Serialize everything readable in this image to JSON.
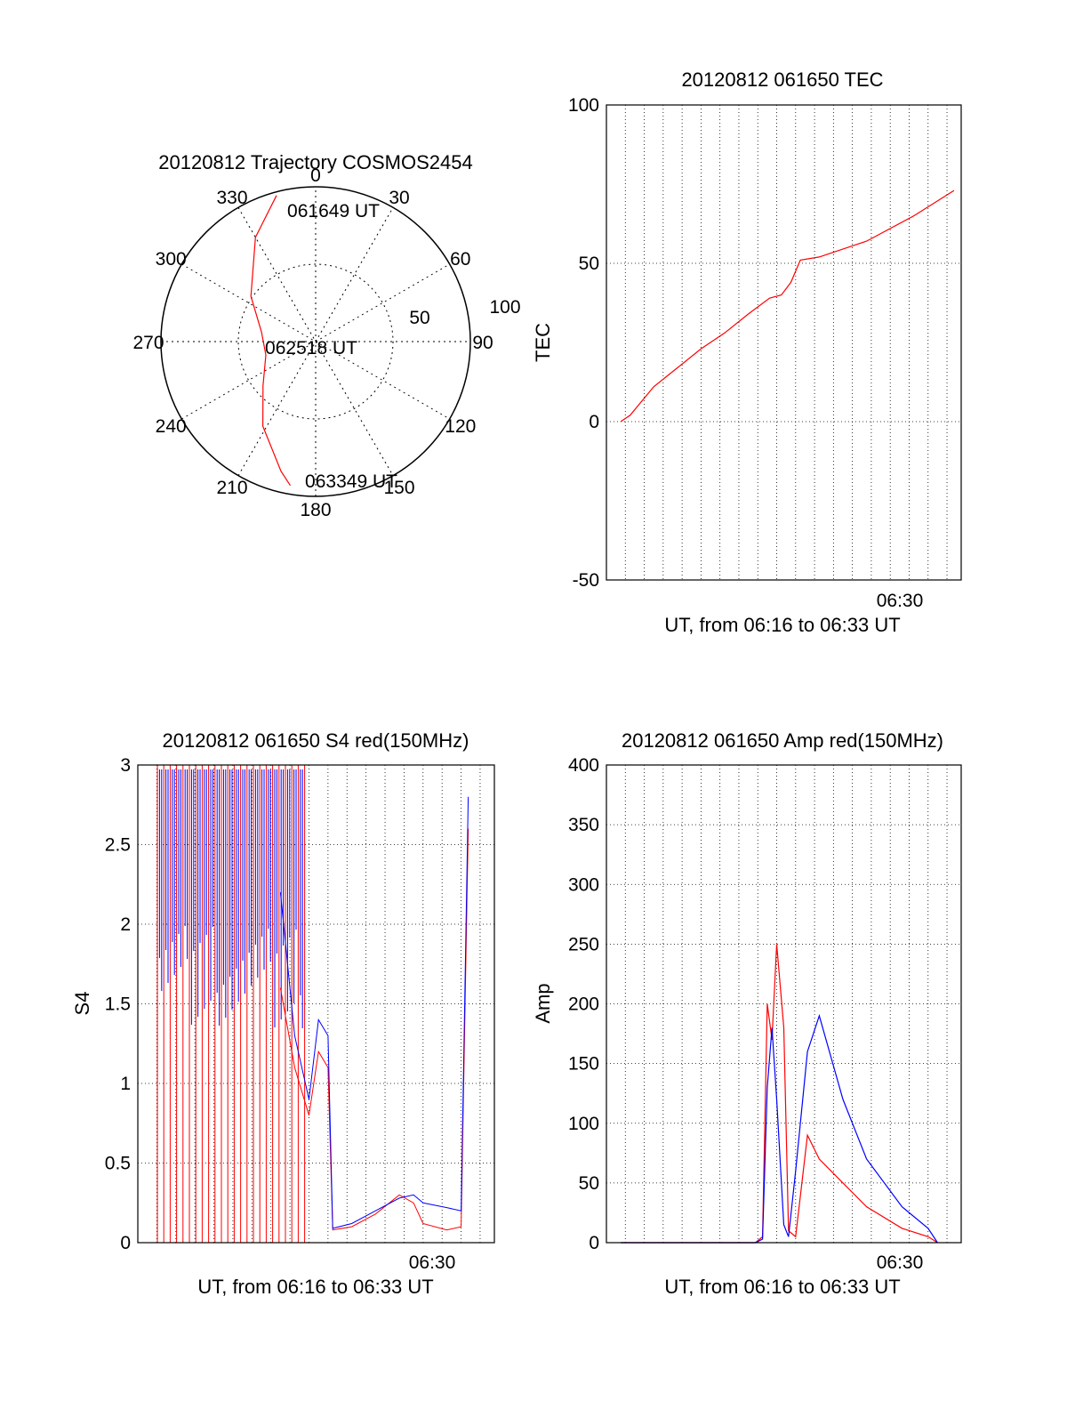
{
  "chart_data": [
    {
      "type": "polar",
      "title": "20120812 Trajectory COSMOS2454",
      "angle_labels": [
        "0",
        "30",
        "60",
        "90",
        "120",
        "150",
        "180",
        "210",
        "240",
        "270",
        "300",
        "330"
      ],
      "radial_labels": [
        "50",
        "100"
      ],
      "annotations": [
        "061649 UT",
        "062518 UT",
        "063349 UT"
      ],
      "trajectory": {
        "color": "#ff0000",
        "points": [
          {
            "az": 345,
            "el": 2
          },
          {
            "az": 330,
            "el": 20
          },
          {
            "az": 305,
            "el": 44
          },
          {
            "az": 280,
            "el": 58
          },
          {
            "az": 255,
            "el": 60
          },
          {
            "az": 230,
            "el": 50
          },
          {
            "az": 212,
            "el": 32
          },
          {
            "az": 195,
            "el": 12
          },
          {
            "az": 190,
            "el": 5
          }
        ]
      }
    },
    {
      "type": "line",
      "title": "20120812 061650 TEC",
      "xlabel": "UT, from 06:16 to 06:33 UT",
      "ylabel": "TEC",
      "ylim": [
        -50,
        100
      ],
      "yticks": [
        "-50",
        "0",
        "50",
        "100"
      ],
      "xtick_label": "06:30",
      "grid": true,
      "series": [
        {
          "color": "#ff0000",
          "x": [
            0.6,
            1.0,
            2.0,
            3.0,
            4.0,
            5.0,
            6.0,
            6.9,
            7.4,
            7.8,
            8.2,
            9.0,
            11.0,
            13.0,
            14.7
          ],
          "y": [
            0,
            2,
            11,
            17,
            23,
            28,
            34,
            39,
            40,
            44,
            51,
            52,
            57,
            65,
            73
          ]
        }
      ]
    },
    {
      "type": "line",
      "title": "20120812 061650 S4 red(150MHz)",
      "xlabel": "UT, from 06:16 to 06:33 UT",
      "ylabel": "S4",
      "ylim": [
        0,
        3
      ],
      "yticks": [
        "0",
        "0.5",
        "1",
        "1.5",
        "2",
        "2.5",
        "3"
      ],
      "xtick_label": "06:30",
      "grid": true,
      "series": [
        {
          "color": "#ff0000",
          "x": [
            6.0,
            6.6,
            7.2,
            7.6,
            8.0,
            8.2,
            9.0,
            10.0,
            11.0,
            11.6,
            12.0,
            13.0,
            13.6,
            13.9
          ],
          "y": [
            1.6,
            1.1,
            0.8,
            1.2,
            1.1,
            0.08,
            0.1,
            0.18,
            0.3,
            0.25,
            0.12,
            0.08,
            0.1,
            2.6
          ]
        },
        {
          "color": "#0000ff",
          "x": [
            6.0,
            6.6,
            7.2,
            7.6,
            8.0,
            8.2,
            9.0,
            10.0,
            11.0,
            11.6,
            12.0,
            13.0,
            13.6,
            13.9
          ],
          "y": [
            2.2,
            1.3,
            0.9,
            1.4,
            1.3,
            0.09,
            0.12,
            0.2,
            0.28,
            0.3,
            0.25,
            0.22,
            0.2,
            2.8
          ]
        }
      ]
    },
    {
      "type": "line",
      "title": "20120812 061650 Amp red(150MHz)",
      "xlabel": "UT, from 06:16 to 06:33 UT",
      "ylabel": "Amp",
      "ylim": [
        0,
        400
      ],
      "yticks": [
        "0",
        "50",
        "100",
        "150",
        "200",
        "250",
        "300",
        "350",
        "400"
      ],
      "xtick_label": "06:30",
      "grid": true,
      "series": [
        {
          "color": "#ff0000",
          "x": [
            0.6,
            6.3,
            6.6,
            6.8,
            7.0,
            7.2,
            7.5,
            7.7,
            8.0,
            8.5,
            9.0,
            10.0,
            11.0,
            12.5,
            13.6,
            14.0
          ],
          "y": [
            0,
            0,
            5,
            200,
            170,
            250,
            180,
            10,
            5,
            90,
            70,
            50,
            30,
            12,
            5,
            0
          ]
        },
        {
          "color": "#0000ff",
          "x": [
            0.6,
            6.3,
            6.6,
            6.8,
            7.0,
            7.2,
            7.5,
            7.7,
            8.0,
            8.5,
            9.0,
            10.0,
            11.0,
            12.5,
            13.6,
            14.0
          ],
          "y": [
            0,
            0,
            3,
            130,
            180,
            120,
            15,
            5,
            60,
            160,
            190,
            120,
            70,
            30,
            12,
            0
          ]
        }
      ]
    }
  ]
}
